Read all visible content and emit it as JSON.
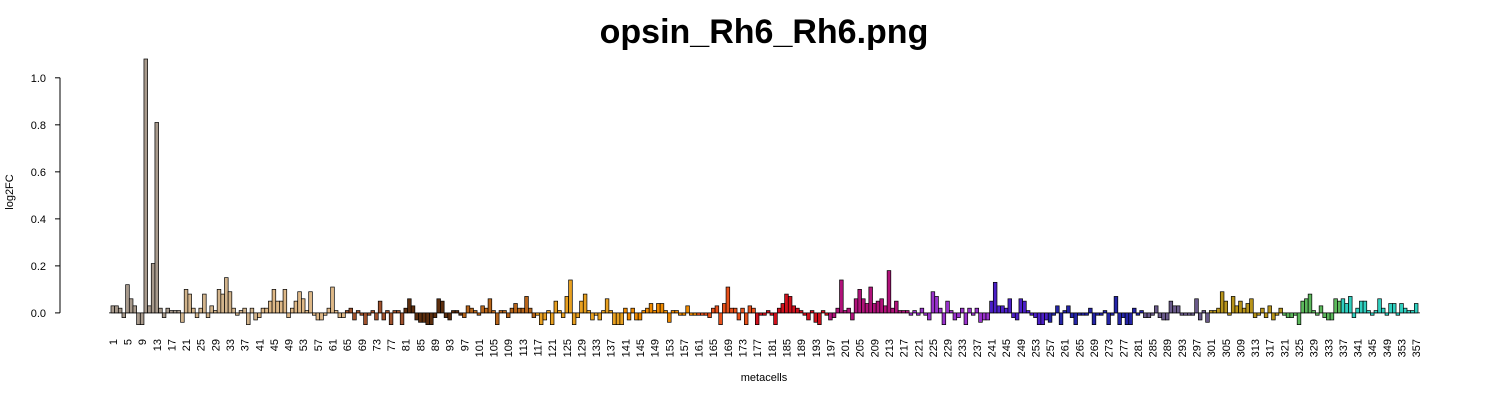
{
  "chart_data": {
    "type": "bar",
    "title": "opsin_Rh6_Rh6.png",
    "xlabel": "metacells",
    "ylabel": "log2FC",
    "categories": [
      1,
      null,
      null,
      null,
      5,
      null,
      null,
      null,
      9,
      null,
      null,
      null,
      13,
      null,
      null,
      null,
      17,
      null,
      null,
      null,
      21,
      null,
      null,
      null,
      25,
      null,
      null,
      null,
      29,
      null,
      null,
      null,
      33,
      null,
      null,
      null,
      37,
      null,
      null,
      null,
      41,
      null,
      null,
      null,
      45,
      null,
      null,
      null,
      49,
      null,
      null,
      null,
      53,
      null,
      null,
      null,
      57,
      null,
      null,
      null,
      61,
      null,
      null,
      null,
      65,
      null,
      null,
      null,
      69,
      null,
      null,
      null,
      73,
      null,
      null,
      null,
      77,
      null,
      null,
      null,
      81,
      null,
      null,
      null,
      85,
      null,
      null,
      null,
      89,
      null,
      null,
      null,
      93,
      null,
      null,
      null,
      97,
      null,
      null,
      null,
      101,
      null,
      null,
      null,
      105,
      null,
      null,
      null,
      109,
      null,
      null,
      null,
      113,
      null,
      null,
      null,
      117,
      null,
      null,
      null,
      121,
      null,
      null,
      null,
      125,
      null,
      null,
      null,
      129,
      null,
      null,
      null,
      133,
      null,
      null,
      null,
      137,
      null,
      null,
      null,
      141,
      null,
      null,
      null,
      145,
      null,
      null,
      null,
      149,
      null,
      null,
      null,
      153,
      null,
      null,
      null,
      157,
      null,
      null,
      null,
      161,
      null,
      null,
      null,
      165,
      null,
      null,
      null,
      169,
      null,
      null,
      null,
      173,
      null,
      null,
      null,
      177,
      null,
      null,
      null,
      181,
      null,
      null,
      null,
      185,
      null,
      null,
      null,
      189,
      null,
      null,
      null,
      193,
      null,
      null,
      null,
      197,
      null,
      null,
      null,
      201,
      null,
      null,
      null,
      205,
      null,
      null,
      null,
      209,
      null,
      null,
      null,
      213,
      null,
      null,
      null,
      217,
      null,
      null,
      null,
      221,
      null,
      null,
      null,
      225,
      null,
      null,
      null,
      229,
      null,
      null,
      null,
      233,
      null,
      null,
      null,
      237,
      null,
      null,
      null,
      241,
      null,
      null,
      null,
      245,
      null,
      null,
      null,
      249,
      null,
      null,
      null,
      253,
      null,
      null,
      null,
      257,
      null,
      null,
      null,
      261,
      null,
      null,
      null,
      265,
      null,
      null,
      null,
      269,
      null,
      null,
      null,
      273,
      null,
      null,
      null,
      277,
      null,
      null,
      null,
      281,
      null,
      null,
      null,
      285,
      null,
      null,
      null,
      289,
      null,
      null,
      null,
      293,
      null,
      null,
      null,
      297,
      null,
      null,
      null,
      301,
      null,
      null,
      null,
      305,
      null,
      null,
      null,
      309,
      null,
      null,
      null,
      313,
      null,
      null,
      null,
      317,
      null,
      null,
      null,
      321,
      null,
      null,
      null,
      325,
      null,
      null,
      null,
      329,
      null,
      null,
      null,
      333,
      null,
      null,
      null,
      337,
      null,
      null,
      null,
      341,
      null,
      null,
      null,
      345,
      null,
      null,
      null,
      349,
      null,
      null,
      null,
      353,
      null,
      null,
      null,
      357
    ],
    "values": [
      0.03,
      0.03,
      0.02,
      -0.02,
      0.12,
      0.06,
      0.03,
      -0.05,
      -0.05,
      1.08,
      0.03,
      0.21,
      0.81,
      0.02,
      -0.02,
      0.02,
      0.01,
      0.01,
      0.01,
      -0.04,
      0.1,
      0.08,
      0.02,
      -0.02,
      0.02,
      0.08,
      -0.02,
      0.03,
      0.01,
      0.1,
      0.08,
      0.15,
      0.09,
      0.02,
      -0.01,
      0.01,
      0.02,
      -0.05,
      0.02,
      -0.03,
      -0.02,
      0.02,
      0.02,
      0.05,
      0.1,
      0.05,
      0.05,
      0.1,
      -0.02,
      0.02,
      0.05,
      0.09,
      0.06,
      0.01,
      0.09,
      -0.01,
      -0.03,
      -0.03,
      -0.01,
      0.02,
      0.11,
      0.01,
      -0.02,
      -0.02,
      0.01,
      0.02,
      -0.03,
      0.01,
      -0.01,
      -0.05,
      -0.01,
      0.01,
      -0.03,
      0.05,
      -0.03,
      0.01,
      -0.05,
      0.01,
      0.01,
      -0.05,
      0.02,
      0.06,
      0.03,
      -0.03,
      -0.04,
      -0.04,
      -0.05,
      -0.05,
      -0.02,
      0.06,
      0.05,
      -0.02,
      -0.03,
      0.01,
      0.01,
      -0.01,
      -0.02,
      0.03,
      0.02,
      0.01,
      -0.01,
      0.03,
      0.02,
      0.06,
      0.01,
      -0.05,
      0.01,
      0.01,
      -0.02,
      0.02,
      0.04,
      0.02,
      0.02,
      0.07,
      0.02,
      -0.02,
      -0.01,
      -0.05,
      -0.03,
      0.01,
      -0.05,
      0.05,
      0.01,
      -0.02,
      0.07,
      0.14,
      -0.05,
      -0.02,
      0.05,
      0.08,
      0.01,
      -0.03,
      -0.01,
      -0.03,
      0.01,
      0.06,
      0.01,
      -0.05,
      -0.05,
      -0.05,
      0.02,
      -0.03,
      0.02,
      -0.03,
      -0.03,
      0.01,
      0.02,
      0.04,
      0.01,
      0.04,
      0.04,
      0.01,
      -0.04,
      0.01,
      0.01,
      -0.01,
      -0.01,
      0.03,
      -0.01,
      -0.01,
      -0.01,
      -0.01,
      -0.01,
      -0.02,
      0.02,
      0.03,
      -0.05,
      0.04,
      0.11,
      0.02,
      0.02,
      -0.03,
      0.02,
      -0.05,
      0.03,
      0.02,
      -0.05,
      -0.01,
      -0.01,
      0.01,
      -0.01,
      -0.05,
      0.02,
      0.04,
      0.08,
      0.07,
      0.03,
      0.02,
      0.01,
      -0.01,
      -0.03,
      0.01,
      -0.04,
      -0.05,
      0.01,
      -0.01,
      -0.03,
      -0.02,
      0.02,
      0.14,
      0.01,
      0.02,
      -0.03,
      0.06,
      0.1,
      0.06,
      0.04,
      0.11,
      0.04,
      0.05,
      0.06,
      0.03,
      0.18,
      0.02,
      0.05,
      0.01,
      0.01,
      0.01,
      -0.01,
      0.01,
      -0.01,
      0.02,
      -0.01,
      -0.03,
      0.09,
      0.07,
      0.02,
      -0.05,
      0.05,
      0.01,
      -0.03,
      -0.02,
      0.02,
      -0.05,
      0.02,
      -0.01,
      0.02,
      -0.04,
      -0.03,
      -0.03,
      0.05,
      0.13,
      0.03,
      0.03,
      0.02,
      0.06,
      -0.02,
      -0.03,
      0.06,
      0.05,
      0.01,
      -0.01,
      -0.02,
      -0.05,
      -0.05,
      -0.03,
      -0.04,
      -0.01,
      0.03,
      -0.05,
      0.01,
      0.03,
      -0.02,
      -0.05,
      -0.01,
      -0.01,
      -0.01,
      0.02,
      -0.05,
      -0.01,
      -0.01,
      0.01,
      -0.05,
      -0.01,
      0.07,
      -0.05,
      -0.02,
      -0.05,
      -0.05,
      0.02,
      -0.01,
      0.01,
      -0.02,
      -0.02,
      -0.01,
      0.03,
      -0.02,
      -0.03,
      -0.03,
      0.05,
      0.03,
      0.03,
      -0.01,
      -0.01,
      -0.01,
      -0.01,
      0.06,
      -0.03,
      0.01,
      -0.04,
      0.01,
      0.01,
      0.02,
      0.09,
      0.05,
      -0.01,
      0.07,
      0.03,
      0.05,
      0.02,
      0.04,
      0.06,
      -0.02,
      -0.01,
      0.02,
      -0.02,
      0.03,
      -0.03,
      -0.01,
      0.02,
      -0.01,
      -0.02,
      -0.02,
      -0.01,
      -0.05,
      0.05,
      0.06,
      0.08,
      0.01,
      -0.01,
      0.03,
      -0.02,
      -0.03,
      -0.03,
      0.06,
      0.05,
      0.06,
      0.04,
      0.07,
      -0.02,
      0.02,
      0.05,
      0.05,
      0.01,
      -0.01,
      0.01,
      0.06,
      0.02,
      -0.01,
      0.04,
      0.04,
      -0.01,
      0.04,
      0.02,
      0.01,
      0.01,
      0.04
    ],
    "colors": [
      "#a89a8c",
      "#a89a8c",
      "#a89a8c",
      "#a89a8c",
      "#a89a8c",
      "#a89a8c",
      "#a89a8c",
      "#a89a8c",
      "#a89a8c",
      "#a89a8c",
      "#a89a8c",
      "#a89a8c",
      "#a89a8c",
      "#a89a8c",
      "#a89a8c",
      "#a89a8c",
      "#a89a8c",
      "#a89a8c",
      "#a89a8c",
      "#d2b48c",
      "#d2b48c",
      "#d2b48c",
      "#d2b48c",
      "#d2b48c",
      "#d2b48c",
      "#d2b48c",
      "#d2b48c",
      "#d2b48c",
      "#d2b48c",
      "#d2b48c",
      "#d2b48c",
      "#d2b48c",
      "#d2b48c",
      "#d2b48c",
      "#d2b48c",
      "#d2b48c",
      "#d2b48c",
      "#d2b48c",
      "#d2b48c",
      "#d2b48c",
      "#deb887",
      "#deb887",
      "#deb887",
      "#deb887",
      "#deb887",
      "#deb887",
      "#deb887",
      "#deb887",
      "#deb887",
      "#deb887",
      "#deb887",
      "#deb887",
      "#deb887",
      "#deb887",
      "#deb887",
      "#deb887",
      "#deb887",
      "#deb887",
      "#deb887",
      "#deb887",
      "#deb887",
      "#deb887",
      "#deb887",
      "#deb887",
      "#a0522d",
      "#a0522d",
      "#a0522d",
      "#a0522d",
      "#a0522d",
      "#a0522d",
      "#a0522d",
      "#a0522d",
      "#a0522d",
      "#a0522d",
      "#a0522d",
      "#a0522d",
      "#a0522d",
      "#a0522d",
      "#a0522d",
      "#a0522d",
      "#5c2e0e",
      "#5c2e0e",
      "#5c2e0e",
      "#5c2e0e",
      "#5c2e0e",
      "#5c2e0e",
      "#5c2e0e",
      "#5c2e0e",
      "#5c2e0e",
      "#5c2e0e",
      "#5c2e0e",
      "#5c2e0e",
      "#5c2e0e",
      "#5c2e0e",
      "#5c2e0e",
      "#5c2e0e",
      "#b8651a",
      "#b8651a",
      "#b8651a",
      "#b8651a",
      "#b8651a",
      "#b8651a",
      "#b8651a",
      "#b8651a",
      "#b8651a",
      "#b8651a",
      "#b8651a",
      "#b8651a",
      "#b8651a",
      "#b8651a",
      "#b8651a",
      "#b8651a",
      "#b8651a",
      "#b8651a",
      "#b8651a",
      "#b8651a",
      "#e8a020",
      "#e8a020",
      "#e8a020",
      "#e8a020",
      "#e8a020",
      "#e8a020",
      "#e8a020",
      "#e8a020",
      "#e8a020",
      "#e8a020",
      "#e8a020",
      "#e8a020",
      "#e8a020",
      "#e8a020",
      "#e8a020",
      "#e8a020",
      "#e8a020",
      "#e8a020",
      "#e8a020",
      "#e8a020",
      "#e8a020",
      "#e8a020",
      "#e8a020",
      "#e8a020",
      "#f08a00",
      "#f08a00",
      "#f08a00",
      "#f08a00",
      "#f08a00",
      "#f08a00",
      "#f08a00",
      "#f08a00",
      "#f08a00",
      "#f08a00",
      "#f08a00",
      "#f08a00",
      "#f08a00",
      "#f08a00",
      "#f08a00",
      "#f08a00",
      "#f08a00",
      "#f08a00",
      "#f08a00",
      "#f08a00",
      "#e8501a",
      "#e8501a",
      "#e8501a",
      "#e8501a",
      "#e8501a",
      "#e8501a",
      "#e8501a",
      "#e8501a",
      "#e8501a",
      "#e8501a",
      "#e8501a",
      "#e8501a",
      "#e8501a",
      "#e8501a",
      "#e8501a",
      "#e8501a",
      "#d0101c",
      "#d0101c",
      "#d0101c",
      "#d0101c",
      "#d0101c",
      "#d0101c",
      "#d0101c",
      "#d0101c",
      "#d0101c",
      "#d0101c",
      "#d0101c",
      "#d0101c",
      "#d0101c",
      "#d0101c",
      "#d0101c",
      "#d0101c",
      "#d0101c",
      "#d0101c",
      "#d0101c",
      "#d0101c",
      "#b0127a",
      "#b0127a",
      "#b0127a",
      "#b0127a",
      "#b0127a",
      "#b0127a",
      "#b0127a",
      "#b0127a",
      "#b0127a",
      "#b0127a",
      "#b0127a",
      "#b0127a",
      "#b0127a",
      "#b0127a",
      "#b0127a",
      "#b0127a",
      "#b0127a",
      "#b0127a",
      "#b0127a",
      "#b0127a",
      "#b0127a",
      "#b0127a",
      "#9932cc",
      "#9932cc",
      "#9932cc",
      "#9932cc",
      "#9932cc",
      "#9932cc",
      "#9932cc",
      "#9932cc",
      "#9932cc",
      "#9932cc",
      "#9932cc",
      "#9932cc",
      "#9932cc",
      "#9932cc",
      "#9932cc",
      "#9932cc",
      "#9932cc",
      "#9932cc",
      "#9932cc",
      "#9932cc",
      "#9932cc",
      "#9932cc",
      "#4b1fc8",
      "#4b1fc8",
      "#4b1fc8",
      "#4b1fc8",
      "#4b1fc8",
      "#4b1fc8",
      "#4b1fc8",
      "#4b1fc8",
      "#4b1fc8",
      "#4b1fc8",
      "#4b1fc8",
      "#4b1fc8",
      "#4b1fc8",
      "#4b1fc8",
      "#4b1fc8",
      "#4b1fc8",
      "#2424a8",
      "#2424a8",
      "#2424a8",
      "#2424a8",
      "#2424a8",
      "#2424a8",
      "#2424a8",
      "#2424a8",
      "#2424a8",
      "#2424a8",
      "#2424a8",
      "#2424a8",
      "#2424a8",
      "#2424a8",
      "#2424a8",
      "#2424a8",
      "#2424a8",
      "#2424a8",
      "#2424a8",
      "#2424a8",
      "#2424a8",
      "#2424a8",
      "#2424a8",
      "#2424a8",
      "#2424a8",
      "#2424a8",
      "#6a5a8a",
      "#6a5a8a",
      "#6a5a8a",
      "#6a5a8a",
      "#6a5a8a",
      "#6a5a8a",
      "#6a5a8a",
      "#6a5a8a",
      "#6a5a8a",
      "#6a5a8a",
      "#6a5a8a",
      "#6a5a8a",
      "#6a5a8a",
      "#6a5a8a",
      "#6a5a8a",
      "#6a5a8a",
      "#6a5a8a",
      "#6a5a8a",
      "#b8941a",
      "#b8941a",
      "#b8941a",
      "#b8941a",
      "#b8941a",
      "#b8941a",
      "#b8941a",
      "#b8941a",
      "#b8941a",
      "#b8941a",
      "#b8941a",
      "#b8941a",
      "#b8941a",
      "#b8941a",
      "#b8941a",
      "#b8941a",
      "#b8941a",
      "#b8941a",
      "#b8941a",
      "#b8941a",
      "#5cb85c",
      "#5cb85c",
      "#5cb85c",
      "#5cb85c",
      "#5cb85c",
      "#5cb85c",
      "#5cb85c",
      "#5cb85c",
      "#5cb85c",
      "#5cb85c",
      "#5cb85c",
      "#5cb85c",
      "#5cb85c",
      "#5cb85c",
      "#5cb85c",
      "#5cb85c",
      "#30d0c0",
      "#30d0c0",
      "#30d0c0",
      "#30d0c0",
      "#30d0c0",
      "#30d0c0",
      "#30d0c0",
      "#30d0c0",
      "#30d0c0",
      "#30d0c0",
      "#30d0c0",
      "#30d0c0",
      "#30d0c0",
      "#30d0c0",
      "#30d0c0",
      "#30d0c0",
      "#30d0c0",
      "#30d0c0",
      "#30d0c0",
      "#30d0c0",
      "#30d0c0"
    ],
    "ylim": [
      -0.06,
      1.08
    ],
    "yticks": [
      {
        "value": 0,
        "label": "0.0"
      },
      {
        "value": 0.2,
        "label": "0.2"
      },
      {
        "value": 0.4,
        "label": "0.4"
      },
      {
        "value": 0.6,
        "label": "0.6"
      },
      {
        "value": 0.8,
        "label": "0.8"
      },
      {
        "value": 1,
        "label": "1.0"
      }
    ],
    "grid": false
  }
}
